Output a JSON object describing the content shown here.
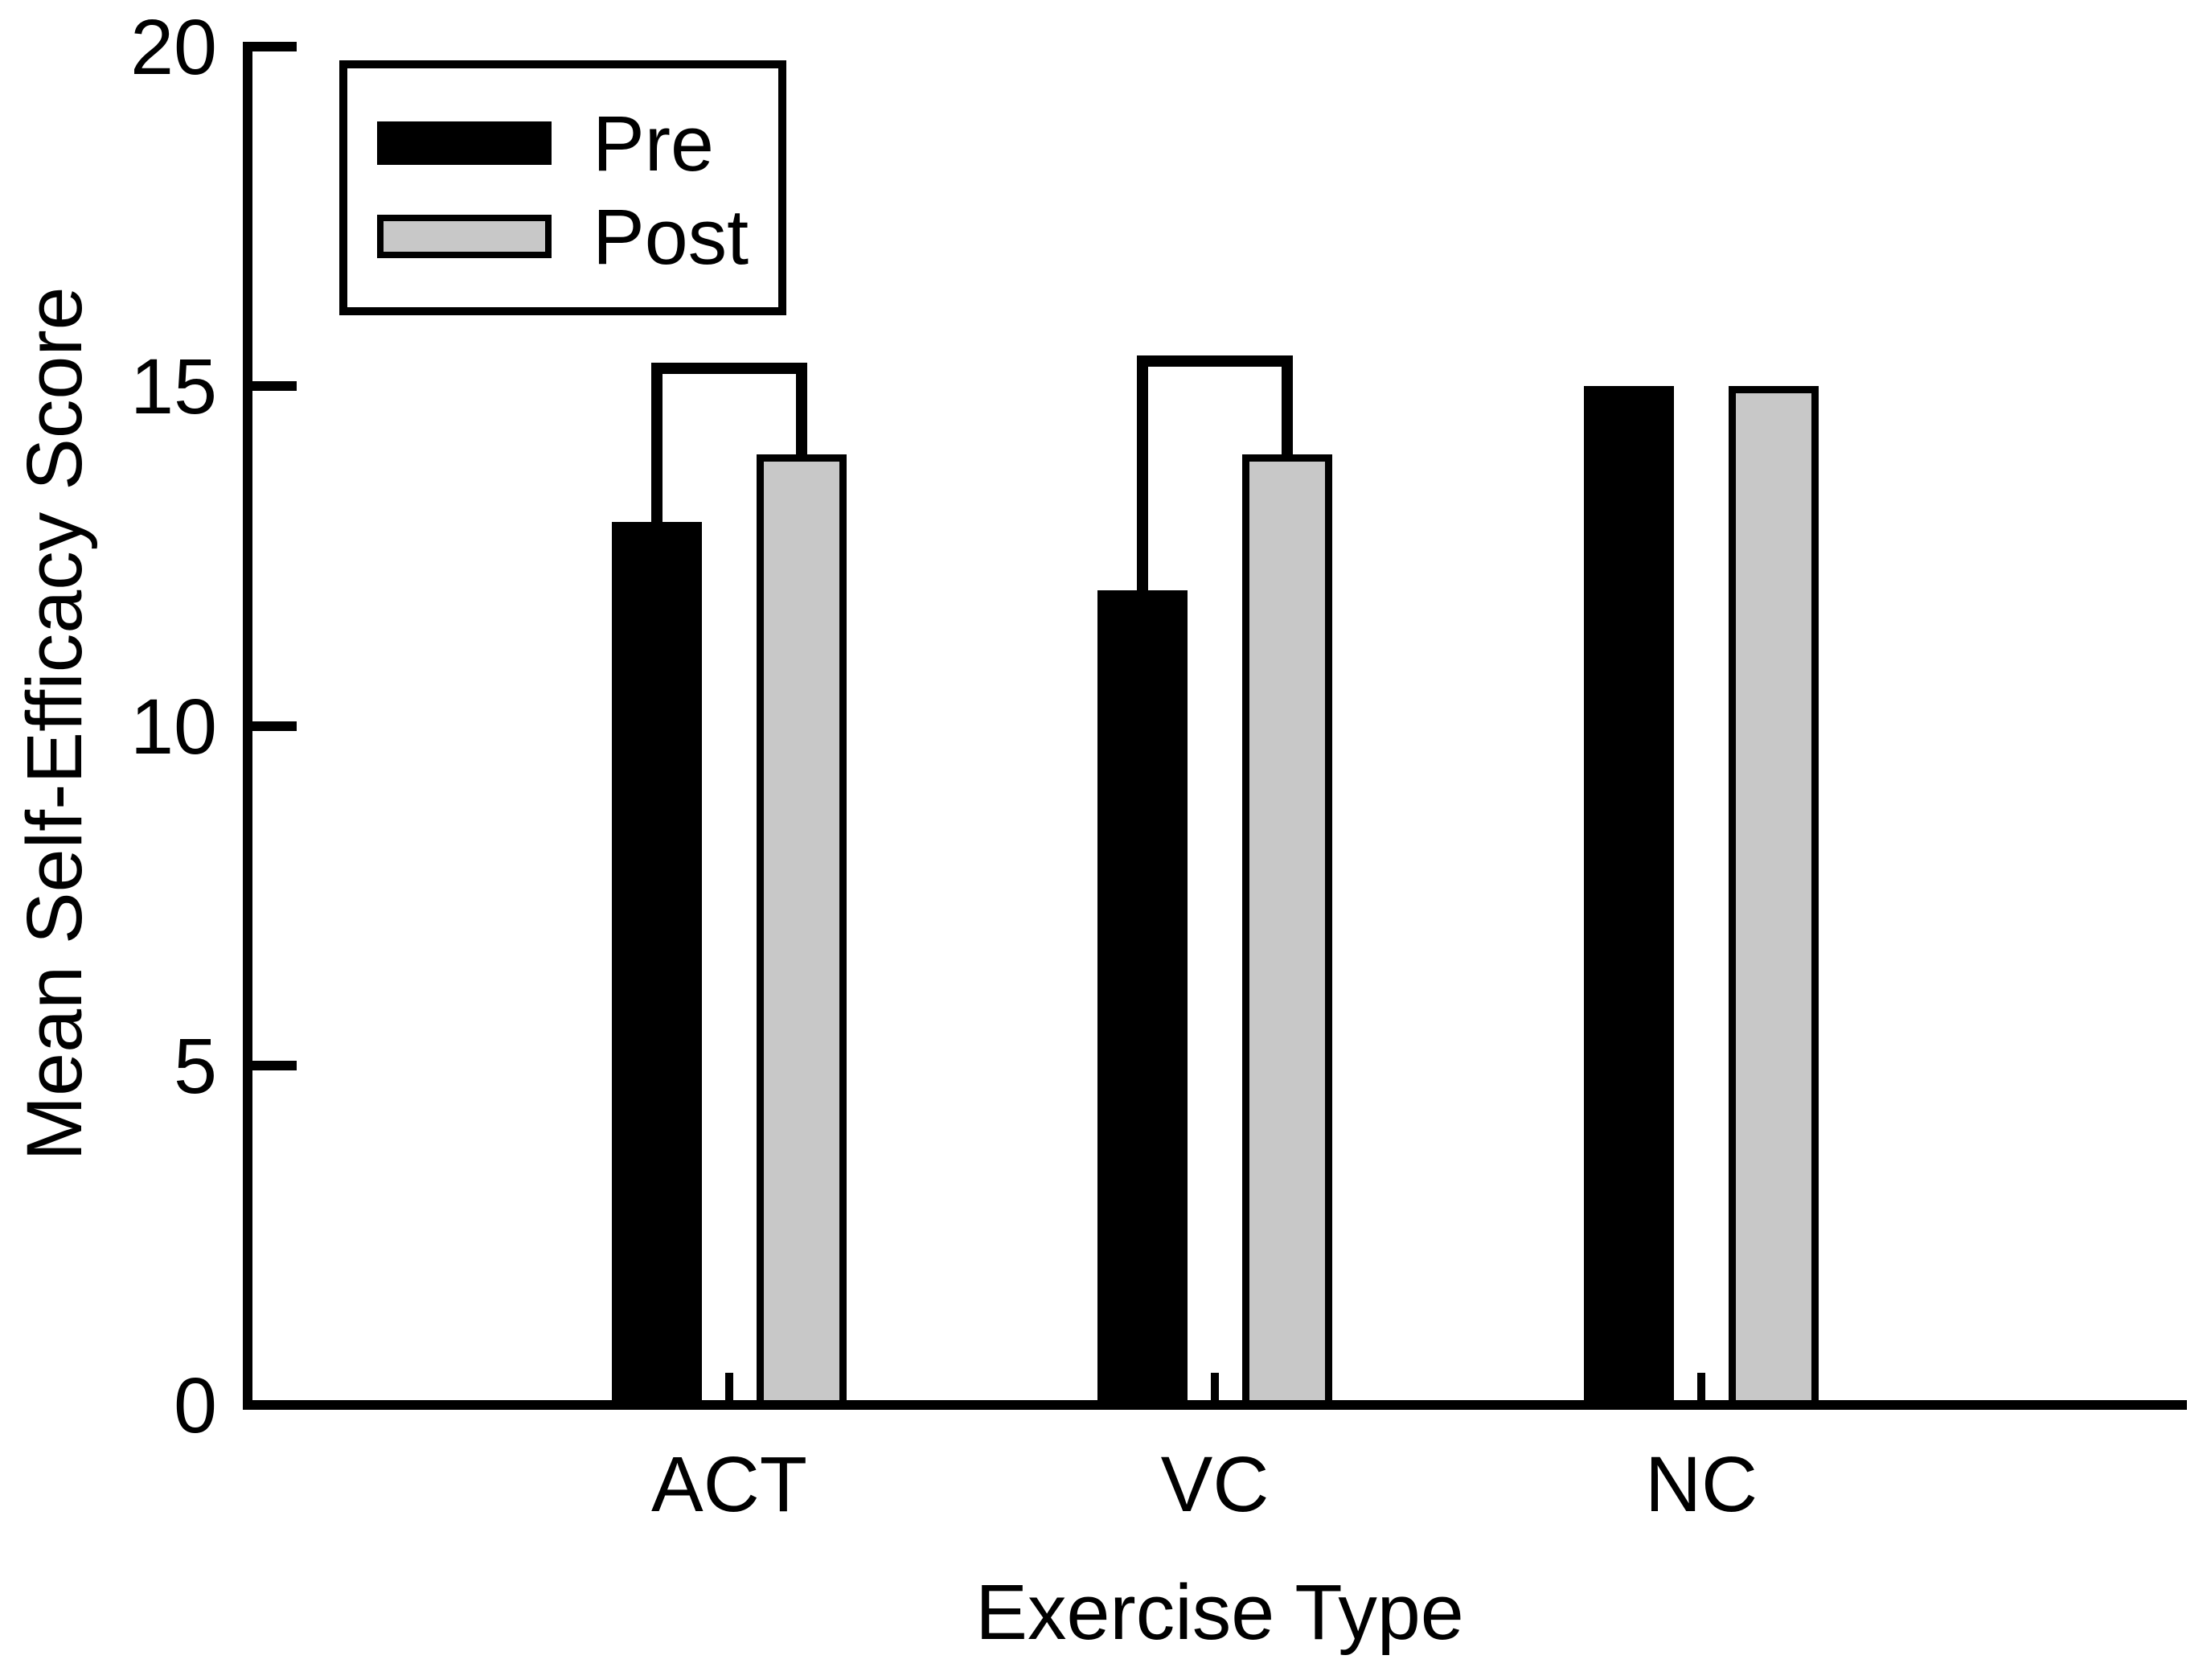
{
  "chart_data": {
    "type": "bar",
    "title": "",
    "xlabel": "Exercise Type",
    "ylabel": "Mean Self-Efficacy Score",
    "categories": [
      "ACT",
      "VC",
      "NC"
    ],
    "series": [
      {
        "name": "Pre",
        "color": "#000000",
        "values": [
          13,
          12,
          15
        ]
      },
      {
        "name": "Post",
        "color": "#c8c8c8",
        "values": [
          14,
          14,
          15
        ]
      }
    ],
    "ylim": [
      0,
      20
    ],
    "yticks": [
      0,
      5,
      10,
      15,
      20
    ],
    "ytick_labels": [
      "0",
      "5",
      "10",
      "15",
      "20"
    ],
    "grid": false,
    "legend_position": "upper-left",
    "bar_border_color": "#000000",
    "axis_color": "#000000",
    "background_color": "#ffffff",
    "significance_brackets": [
      {
        "category": "ACT",
        "between": [
          "Pre",
          "Post"
        ],
        "level": 15.35
      },
      {
        "category": "VC",
        "between": [
          "Pre",
          "Post"
        ],
        "level": 15.45
      }
    ]
  }
}
